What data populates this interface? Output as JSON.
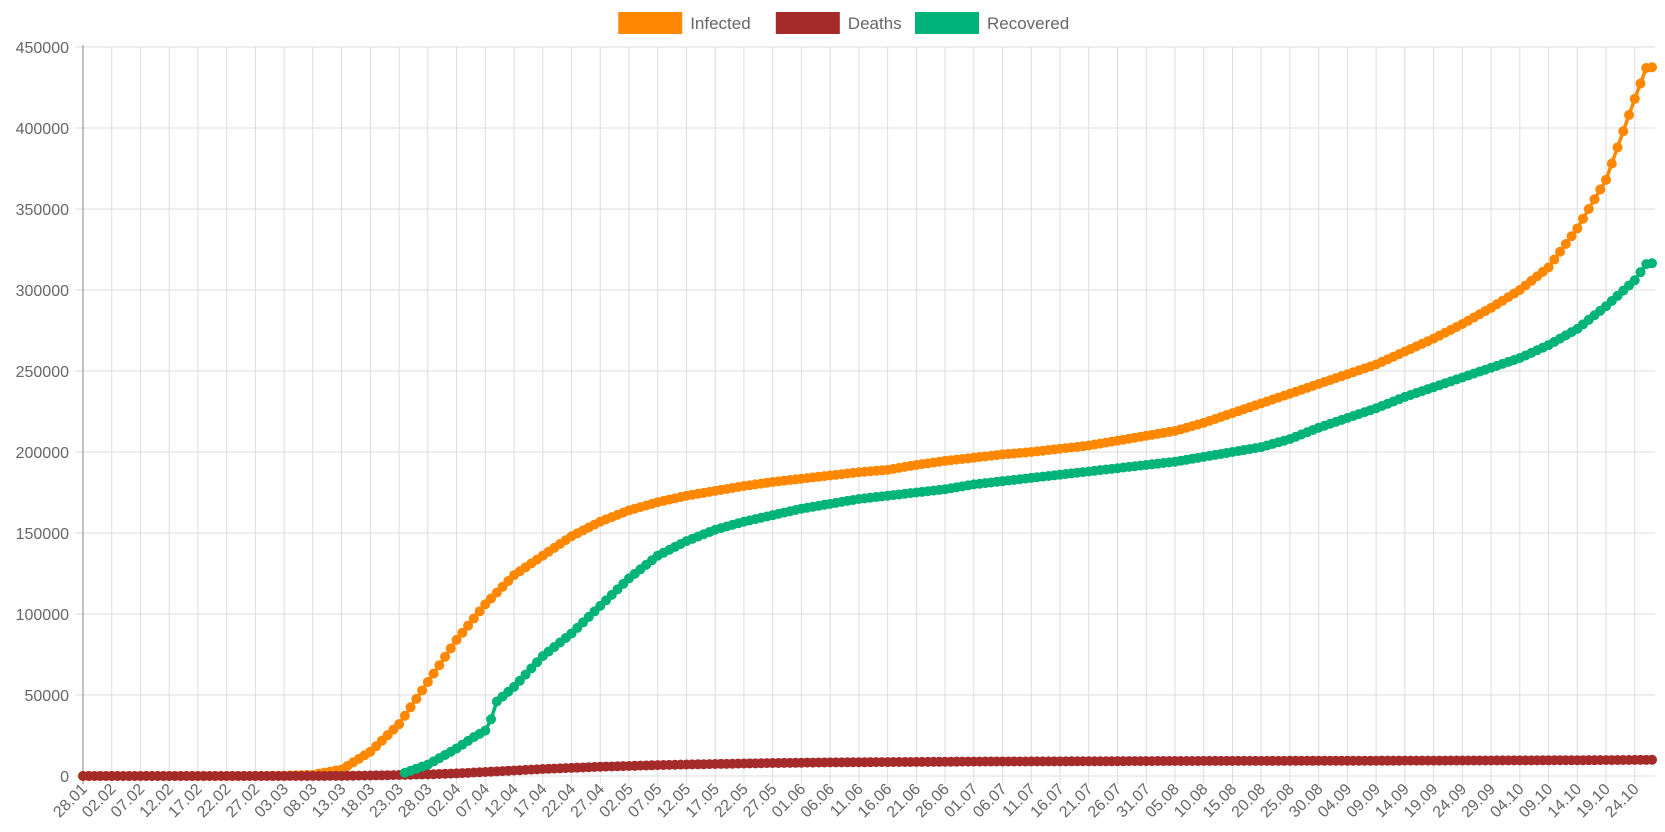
{
  "chart_data": {
    "type": "line",
    "legend_position": "top-center",
    "grid": true,
    "ylim": [
      0,
      450000
    ],
    "y_ticks": [
      "0",
      "50000",
      "100000",
      "150000",
      "200000",
      "250000",
      "300000",
      "350000",
      "400000",
      "450000"
    ],
    "x": {
      "start_date": "2020-01-28",
      "end_date": "2020-10-27",
      "tick_labels": [
        "28.01",
        "02.02",
        "07.02",
        "12.02",
        "17.02",
        "22.02",
        "27.02",
        "03.03",
        "08.03",
        "13.03",
        "18.03",
        "23.03",
        "28.03",
        "02.04",
        "07.04",
        "12.04",
        "17.04",
        "22.04",
        "27.04",
        "02.05",
        "07.05",
        "12.05",
        "17.05",
        "22.05",
        "27.05",
        "01.06",
        "06.06",
        "11.06",
        "16.06",
        "21.06",
        "26.06",
        "01.07",
        "06.07",
        "11.07",
        "16.07",
        "21.07",
        "26.07",
        "31.07",
        "05.08",
        "10.08",
        "15.08",
        "20.08",
        "25.08",
        "30.08",
        "04.09",
        "09.09",
        "14.09",
        "19.09",
        "24.09",
        "29.09",
        "04.10",
        "09.10",
        "14.10",
        "19.10",
        "24.10"
      ]
    },
    "series": [
      {
        "name": "Infected",
        "color": "#ff8800",
        "start_date": "2020-01-28",
        "anchors": [
          [
            "28.01",
            0
          ],
          [
            "27.02",
            0
          ],
          [
            "03.03",
            200
          ],
          [
            "08.03",
            800
          ],
          [
            "13.03",
            4000
          ],
          [
            "18.03",
            15000
          ],
          [
            "23.03",
            32000
          ],
          [
            "28.03",
            58000
          ],
          [
            "02.04",
            84000
          ],
          [
            "07.04",
            106000
          ],
          [
            "12.04",
            124000
          ],
          [
            "17.04",
            136000
          ],
          [
            "22.04",
            148000
          ],
          [
            "27.04",
            157000
          ],
          [
            "02.05",
            164000
          ],
          [
            "07.05",
            169000
          ],
          [
            "12.05",
            173000
          ],
          [
            "17.05",
            176000
          ],
          [
            "22.05",
            179000
          ],
          [
            "27.05",
            181500
          ],
          [
            "01.06",
            183500
          ],
          [
            "06.06",
            185500
          ],
          [
            "11.06",
            187500
          ],
          [
            "16.06",
            189000
          ],
          [
            "21.06",
            192000
          ],
          [
            "26.06",
            194500
          ],
          [
            "01.07",
            196500
          ],
          [
            "06.07",
            198500
          ],
          [
            "11.07",
            200000
          ],
          [
            "16.07",
            202000
          ],
          [
            "21.07",
            204000
          ],
          [
            "26.07",
            207000
          ],
          [
            "31.07",
            210000
          ],
          [
            "05.08",
            213000
          ],
          [
            "10.08",
            218000
          ],
          [
            "15.08",
            224000
          ],
          [
            "20.08",
            230000
          ],
          [
            "25.08",
            236000
          ],
          [
            "30.08",
            242000
          ],
          [
            "04.09",
            248000
          ],
          [
            "09.09",
            254000
          ],
          [
            "14.09",
            262000
          ],
          [
            "19.09",
            270000
          ],
          [
            "24.09",
            279000
          ],
          [
            "29.09",
            289000
          ],
          [
            "04.10",
            300000
          ],
          [
            "09.10",
            314000
          ],
          [
            "14.10",
            338000
          ],
          [
            "19.10",
            368000
          ],
          [
            "24.10",
            418000
          ],
          [
            "26.10",
            437000
          ],
          [
            "27.10",
            437500
          ]
        ]
      },
      {
        "name": "Deaths",
        "color": "#a52a2a",
        "start_date": "2020-01-28",
        "anchors": [
          [
            "28.01",
            0
          ],
          [
            "08.03",
            0
          ],
          [
            "13.03",
            100
          ],
          [
            "18.03",
            300
          ],
          [
            "23.03",
            600
          ],
          [
            "28.03",
            1000
          ],
          [
            "02.04",
            1600
          ],
          [
            "07.04",
            2500
          ],
          [
            "12.04",
            3400
          ],
          [
            "17.04",
            4300
          ],
          [
            "22.04",
            5000
          ],
          [
            "27.04",
            5700
          ],
          [
            "02.05",
            6200
          ],
          [
            "07.05",
            6700
          ],
          [
            "12.05",
            7100
          ],
          [
            "17.05",
            7400
          ],
          [
            "22.05",
            7700
          ],
          [
            "27.05",
            8000
          ],
          [
            "01.06",
            8200
          ],
          [
            "06.06",
            8400
          ],
          [
            "11.06",
            8500
          ],
          [
            "16.06",
            8600
          ],
          [
            "21.06",
            8700
          ],
          [
            "01.07",
            8900
          ],
          [
            "11.07",
            9000
          ],
          [
            "21.07",
            9100
          ],
          [
            "31.07",
            9200
          ],
          [
            "10.08",
            9300
          ],
          [
            "20.08",
            9350
          ],
          [
            "30.08",
            9400
          ],
          [
            "09.09",
            9450
          ],
          [
            "19.09",
            9500
          ],
          [
            "29.09",
            9600
          ],
          [
            "09.10",
            9700
          ],
          [
            "19.10",
            9800
          ],
          [
            "27.10",
            10000
          ]
        ]
      },
      {
        "name": "Recovered",
        "color": "#00b378",
        "start_date": "2020-03-24",
        "anchors": [
          [
            "24.03",
            2000
          ],
          [
            "28.03",
            7000
          ],
          [
            "02.04",
            17000
          ],
          [
            "05.04",
            24000
          ],
          [
            "07.04",
            28000
          ],
          [
            "08.04",
            35000
          ],
          [
            "09.04",
            46000
          ],
          [
            "12.04",
            55000
          ],
          [
            "17.04",
            74000
          ],
          [
            "22.04",
            88000
          ],
          [
            "27.04",
            105000
          ],
          [
            "02.05",
            122000
          ],
          [
            "07.05",
            136000
          ],
          [
            "12.05",
            145000
          ],
          [
            "17.05",
            152000
          ],
          [
            "22.05",
            157000
          ],
          [
            "27.05",
            161000
          ],
          [
            "01.06",
            165000
          ],
          [
            "06.06",
            168000
          ],
          [
            "11.06",
            171000
          ],
          [
            "16.06",
            173000
          ],
          [
            "21.06",
            175000
          ],
          [
            "26.06",
            177000
          ],
          [
            "01.07",
            180000
          ],
          [
            "06.07",
            182000
          ],
          [
            "11.07",
            184000
          ],
          [
            "16.07",
            186000
          ],
          [
            "21.07",
            188000
          ],
          [
            "26.07",
            190000
          ],
          [
            "31.07",
            192000
          ],
          [
            "05.08",
            194000
          ],
          [
            "10.08",
            197000
          ],
          [
            "15.08",
            200000
          ],
          [
            "20.08",
            203000
          ],
          [
            "25.08",
            208000
          ],
          [
            "30.08",
            215000
          ],
          [
            "04.09",
            221000
          ],
          [
            "09.09",
            227000
          ],
          [
            "14.09",
            234000
          ],
          [
            "19.09",
            240000
          ],
          [
            "24.09",
            246000
          ],
          [
            "29.09",
            252000
          ],
          [
            "04.10",
            258000
          ],
          [
            "09.10",
            266000
          ],
          [
            "14.10",
            276000
          ],
          [
            "19.10",
            290000
          ],
          [
            "24.10",
            306000
          ],
          [
            "26.10",
            316000
          ],
          [
            "27.10",
            316500
          ]
        ]
      }
    ]
  }
}
